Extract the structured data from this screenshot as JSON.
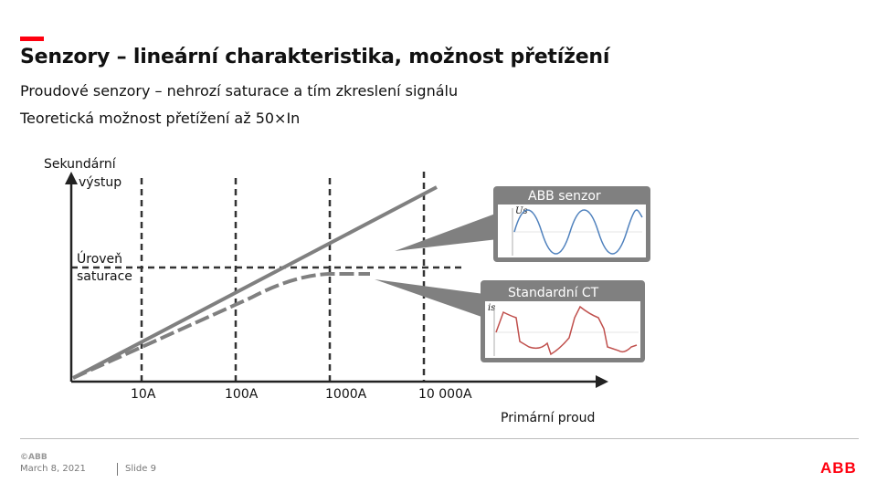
{
  "slide": {
    "title": "Senzory – lineární charakteristika, možnost přetížení",
    "bullet1": "Proudové senzory – nehrozí saturace a tím zkreslení signálu",
    "bullet2": "Teoretická možnost přetížení až 50×In"
  },
  "diagram": {
    "y_axis_label_line1": "Sekundární",
    "y_axis_label_line2": "výstup",
    "x_axis_label": "Primární proud",
    "saturation_label_line1": "Úroveň",
    "saturation_label_line2": "saturace",
    "x_ticks": [
      "10A",
      "100A",
      "1000A",
      "10 000A"
    ],
    "inset_abb": {
      "caption": "ABB senzor",
      "axis": "Us"
    },
    "inset_ct": {
      "caption": "Standardní CT",
      "axis": "is"
    },
    "colors": {
      "line": "#808080",
      "saturation_curve": "#808080",
      "ct_signal": "#c0504d",
      "abb_signal": "#4f81bd"
    }
  },
  "footer": {
    "logo_small": "©ABB",
    "date": "March 8, 2021",
    "slide_number": "Slide 9",
    "logo": "ABB"
  }
}
